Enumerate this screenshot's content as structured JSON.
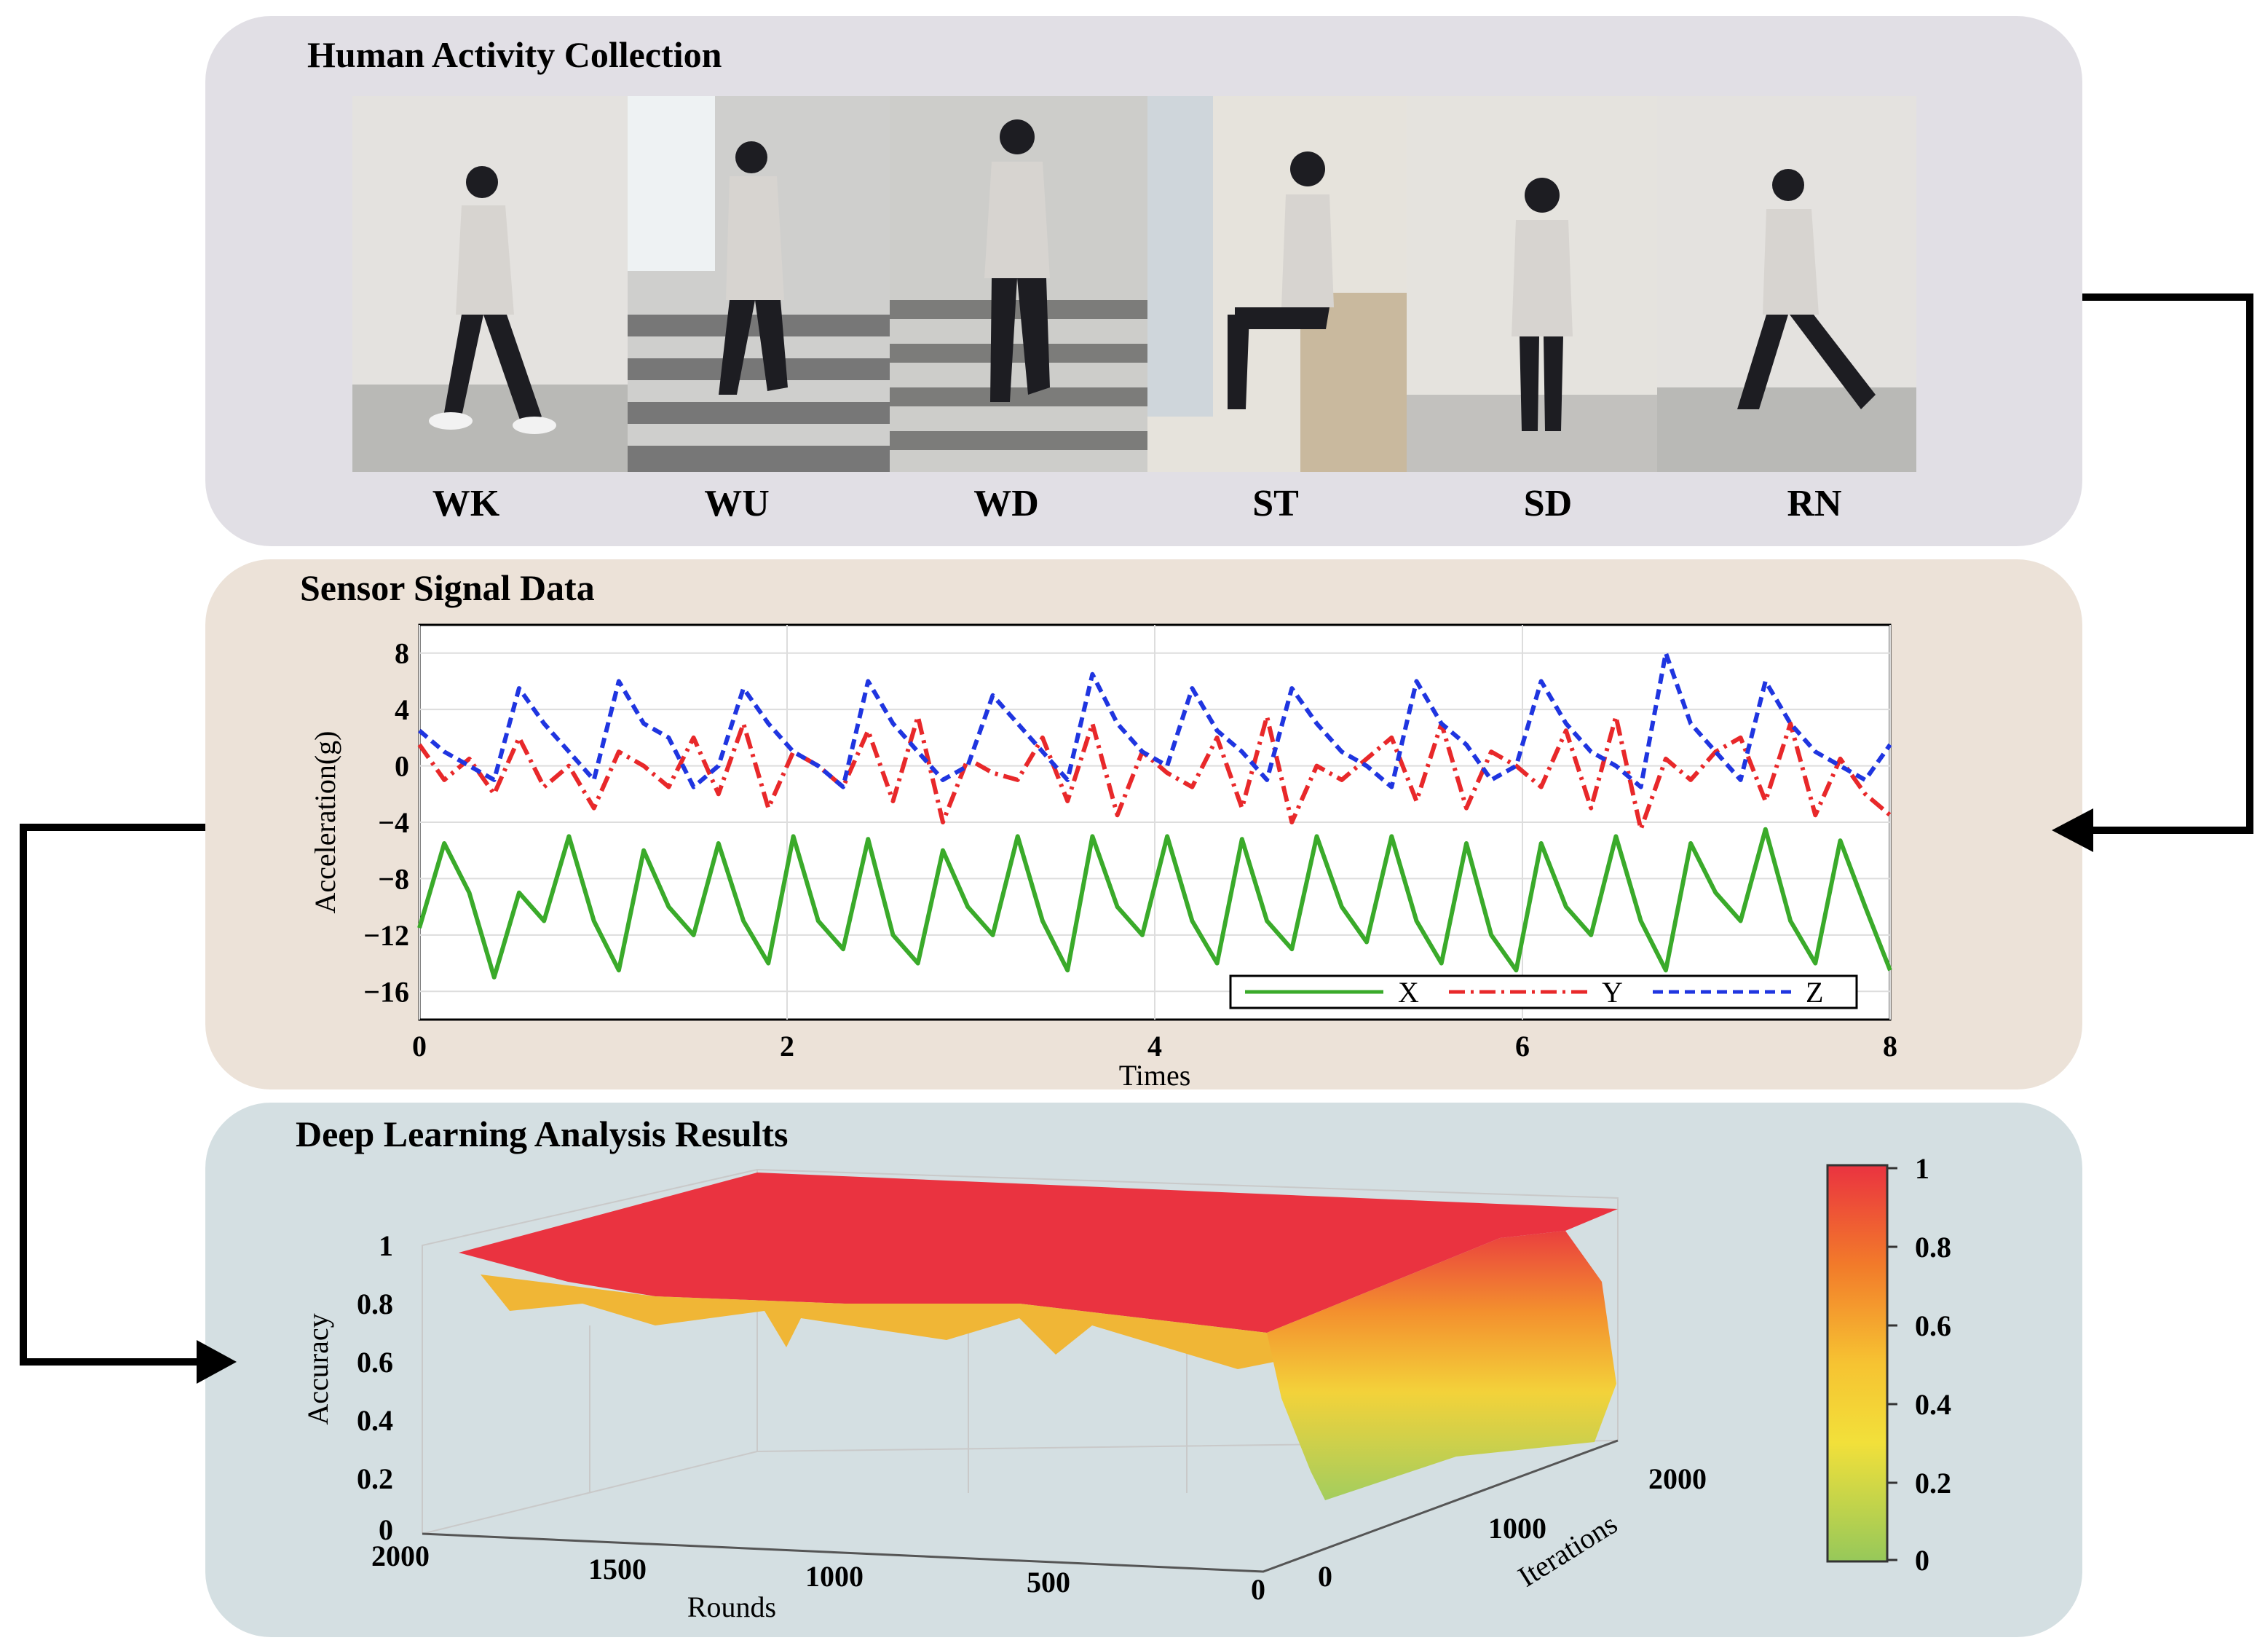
{
  "panels": {
    "collection": {
      "title": "Human Activity Collection",
      "activities": [
        {
          "label": "WK"
        },
        {
          "label": "WU"
        },
        {
          "label": "WD"
        },
        {
          "label": "ST"
        },
        {
          "label": "SD"
        },
        {
          "label": "RN"
        }
      ]
    },
    "sensor": {
      "title": "Sensor Signal Data"
    },
    "analysis": {
      "title": "Deep Learning Analysis Results"
    }
  },
  "chart_data": [
    {
      "type": "line",
      "xlabel": "Times",
      "ylabel": "Acceleration(g)",
      "xlim": [
        0,
        8
      ],
      "ylim": [
        -18,
        10
      ],
      "xticks": [
        "0",
        "2",
        "4",
        "6",
        "8"
      ],
      "yticks": [
        "8",
        "4",
        "0",
        "−4",
        "−8",
        "−12",
        "−16"
      ],
      "legend_position": "bottom-right",
      "series": [
        {
          "name": "X",
          "color": "#3aaa2a",
          "style": "solid",
          "values": [
            -11.5,
            -5.5,
            -9,
            -15,
            -9,
            -11,
            -5,
            -11,
            -14.5,
            -6,
            -10,
            -12,
            -5.5,
            -11,
            -14,
            -5,
            -11,
            -13,
            -5.2,
            -12,
            -14,
            -6,
            -10,
            -12,
            -5,
            -11,
            -14.5,
            -5,
            -10,
            -12,
            -5,
            -11,
            -14,
            -5.2,
            -11,
            -13,
            -5,
            -10,
            -12.5,
            -5,
            -11,
            -14,
            -5.5,
            -12,
            -14.5,
            -5.5,
            -10,
            -12,
            -5,
            -11,
            -14.5,
            -5.5,
            -9,
            -11,
            -4.5,
            -11,
            -14,
            -5.3,
            -10,
            -14.5
          ]
        },
        {
          "name": "Y",
          "color": "#e8282a",
          "style": "dash-dot",
          "values": [
            1.5,
            -1,
            0.5,
            -2,
            2,
            -1.5,
            0,
            -3,
            1,
            0,
            -1.5,
            2,
            -2,
            3,
            -3,
            1,
            0,
            -1.5,
            2.5,
            -2.5,
            3.5,
            -4,
            0.5,
            -0.5,
            -1,
            2,
            -2.5,
            3,
            -3.5,
            1,
            -0.5,
            -1.5,
            2,
            -3,
            3.5,
            -4,
            0,
            -1,
            0.5,
            2,
            -2.5,
            3,
            -3,
            1,
            0,
            -1.5,
            2.5,
            -3,
            3.5,
            -4.5,
            0.5,
            -1,
            1,
            2,
            -2.5,
            3,
            -3.5,
            0.5,
            -2,
            -3.5
          ]
        },
        {
          "name": "Z",
          "color": "#1f35e0",
          "style": "dashed",
          "values": [
            2.5,
            1,
            0,
            -1,
            5.5,
            3,
            1,
            -1,
            6,
            3,
            2,
            -1.5,
            0,
            5.5,
            3,
            1,
            0,
            -1.5,
            6,
            3,
            1,
            -1,
            0,
            5,
            3,
            1,
            -1,
            6.5,
            3,
            1,
            0,
            5.5,
            2.5,
            1,
            -1,
            5.5,
            3,
            1,
            0,
            -1.5,
            6,
            3,
            1.5,
            -1,
            0,
            6,
            3,
            1,
            0,
            -1.5,
            8,
            3,
            1,
            -1,
            6,
            3,
            1,
            0,
            -1,
            1.5
          ]
        }
      ]
    },
    {
      "type": "surface",
      "xlabel": "Rounds",
      "ylabel": "Iterations",
      "zlabel": "Accuracy",
      "x_ticks": [
        "2000",
        "1500",
        "1000",
        "500",
        "0"
      ],
      "y_ticks": [
        "0",
        "1000",
        "2000"
      ],
      "z_ticks": [
        "1",
        "0.8",
        "0.6",
        "0.4",
        "0.2",
        "0"
      ],
      "colorbar_ticks": [
        "1",
        "0.8",
        "0.6",
        "0.4",
        "0.2",
        "0"
      ],
      "colormap": [
        "#e8323c",
        "#f27a2a",
        "#f6c332",
        "#f2e03a",
        "#9fcc5c"
      ],
      "description_values": {
        "plateau_accuracy": 0.97,
        "low_round_accuracy": 0.2
      }
    }
  ]
}
